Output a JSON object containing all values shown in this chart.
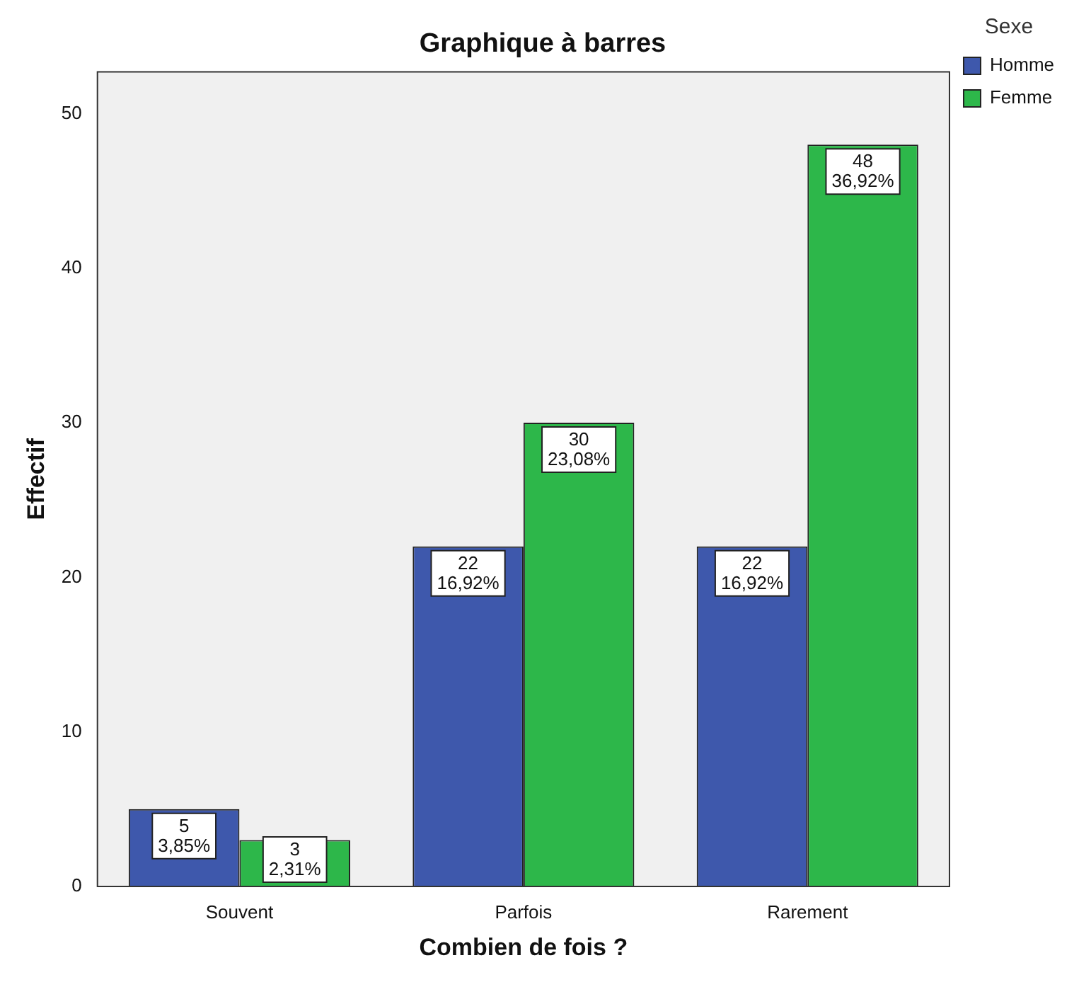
{
  "chart_data": {
    "type": "bar",
    "title": "Graphique à barres",
    "xlabel": "Combien de fois ?",
    "ylabel": "Effectif",
    "legend_title": "Sexe",
    "categories": [
      "Souvent",
      "Parfois",
      "Rarement"
    ],
    "series": [
      {
        "name": "Homme",
        "color": "#3e58ac",
        "values": [
          5,
          22,
          22
        ],
        "value_labels": [
          "5\n3,85%",
          "22\n16,92%",
          "22\n16,92%"
        ]
      },
      {
        "name": "Femme",
        "color": "#2db74a",
        "values": [
          3,
          30,
          48
        ],
        "value_labels": [
          "3\n2,31%",
          "30\n23,08%",
          "48\n36,92%"
        ]
      }
    ],
    "ylim": [
      0,
      52.7
    ],
    "yticks": [
      0,
      10,
      20,
      30,
      40,
      50
    ],
    "grid": false,
    "legend": "top right"
  }
}
